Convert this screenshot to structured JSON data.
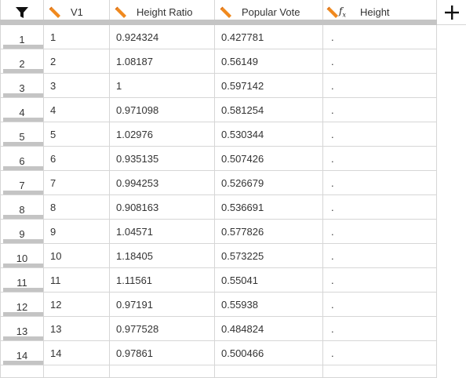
{
  "header": {
    "columns": [
      {
        "label": "V1",
        "icon": "pencil-icon"
      },
      {
        "label": "Height Ratio",
        "icon": "pencil-icon"
      },
      {
        "label": "Popular Vote",
        "icon": "pencil-icon"
      },
      {
        "label": "Height",
        "icon": "pencil-fx-icon"
      }
    ],
    "fx_label": "f",
    "fx_sub": "x",
    "filter_icon": "filter-icon",
    "add_icon": "plus-icon"
  },
  "rows": [
    {
      "num": "1",
      "v1": "1",
      "ratio": "0.924324",
      "vote": "0.427781",
      "height": "."
    },
    {
      "num": "2",
      "v1": "2",
      "ratio": "1.08187",
      "vote": "0.56149",
      "height": "."
    },
    {
      "num": "3",
      "v1": "3",
      "ratio": "1",
      "vote": "0.597142",
      "height": "."
    },
    {
      "num": "4",
      "v1": "4",
      "ratio": "0.971098",
      "vote": "0.581254",
      "height": "."
    },
    {
      "num": "5",
      "v1": "5",
      "ratio": "1.02976",
      "vote": "0.530344",
      "height": "."
    },
    {
      "num": "6",
      "v1": "6",
      "ratio": "0.935135",
      "vote": "0.507426",
      "height": "."
    },
    {
      "num": "7",
      "v1": "7",
      "ratio": "0.994253",
      "vote": "0.526679",
      "height": "."
    },
    {
      "num": "8",
      "v1": "8",
      "ratio": "0.908163",
      "vote": "0.536691",
      "height": "."
    },
    {
      "num": "9",
      "v1": "9",
      "ratio": "1.04571",
      "vote": "0.577826",
      "height": "."
    },
    {
      "num": "10",
      "v1": "10",
      "ratio": "1.18405",
      "vote": "0.573225",
      "height": "."
    },
    {
      "num": "11",
      "v1": "11",
      "ratio": "1.11561",
      "vote": "0.55041",
      "height": "."
    },
    {
      "num": "12",
      "v1": "12",
      "ratio": "0.97191",
      "vote": "0.55938",
      "height": "."
    },
    {
      "num": "13",
      "v1": "13",
      "ratio": "0.977528",
      "vote": "0.484824",
      "height": "."
    },
    {
      "num": "14",
      "v1": "14",
      "ratio": "0.97861",
      "vote": "0.500466",
      "height": "."
    }
  ]
}
